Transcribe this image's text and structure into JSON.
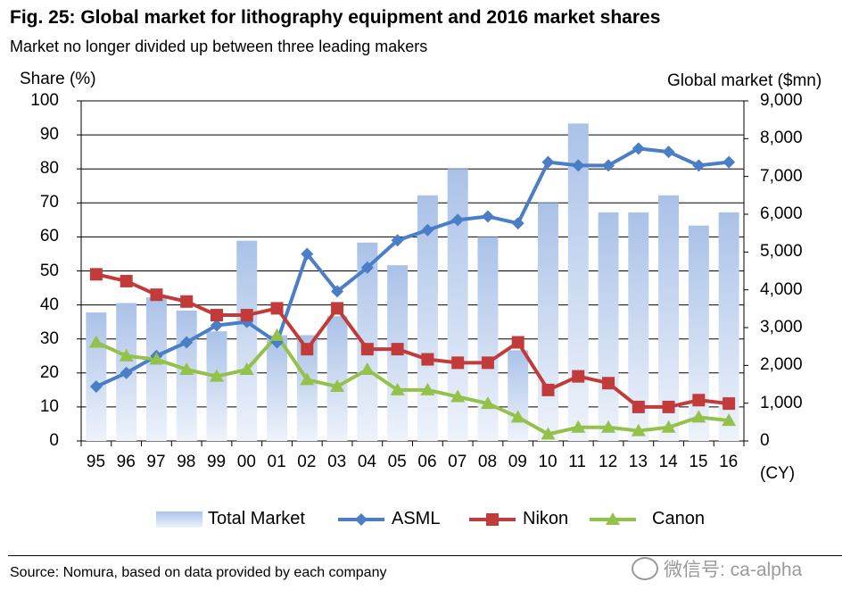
{
  "header": {
    "title": "Fig. 25: Global market for lithography equipment and 2016 market shares",
    "subtitle": "Market no longer divided up between three leading makers"
  },
  "footer": {
    "source": "Source: Nomura, based on data provided by each company",
    "watermark": "微信号: ca-alpha"
  },
  "colors": {
    "bar": "#b7cbea",
    "asml": "#4a7ec6",
    "nikon": "#c23b3b",
    "canon": "#93c14a",
    "grid": "#000000"
  },
  "chart_data": {
    "type": "bar",
    "title": "Fig. 25: Global market for lithography equipment and 2016 market shares",
    "ylabel_left": "Share (%)",
    "ylabel_right": "Global market ($mn)",
    "xlabel": "(CY)",
    "categories": [
      "95",
      "96",
      "97",
      "98",
      "99",
      "00",
      "01",
      "02",
      "03",
      "04",
      "05",
      "06",
      "07",
      "08",
      "09",
      "10",
      "11",
      "12",
      "13",
      "14",
      "15",
      "16"
    ],
    "ylim_left": [
      0,
      100
    ],
    "ylim_right": [
      0,
      9000
    ],
    "yticks_left": [
      "0",
      "10",
      "20",
      "30",
      "40",
      "50",
      "60",
      "70",
      "80",
      "90",
      "100"
    ],
    "yticks_right": [
      "0",
      "1,000",
      "2,000",
      "3,000",
      "4,000",
      "5,000",
      "6,000",
      "7,000",
      "8,000",
      "9,000"
    ],
    "grid": "horizontal",
    "legend_position": "bottom",
    "series": [
      {
        "name": "Total Market",
        "type": "bar",
        "axis": "right",
        "values": [
          3400,
          3650,
          3800,
          3450,
          2900,
          5300,
          2800,
          2800,
          3300,
          5250,
          4650,
          6500,
          7200,
          5400,
          2400,
          6300,
          8400,
          6050,
          6050,
          6500,
          5700,
          6050
        ]
      },
      {
        "name": "ASML",
        "type": "line",
        "marker": "diamond",
        "axis": "left",
        "values": [
          16,
          20,
          25,
          29,
          34,
          35,
          29,
          55,
          44,
          51,
          59,
          62,
          65,
          66,
          64,
          82,
          81,
          81,
          86,
          85,
          81,
          82
        ]
      },
      {
        "name": "Nikon",
        "type": "line",
        "marker": "square",
        "axis": "left",
        "values": [
          49,
          47,
          43,
          41,
          37,
          37,
          39,
          27,
          39,
          27,
          27,
          24,
          23,
          23,
          29,
          15,
          19,
          17,
          10,
          10,
          12,
          11
        ]
      },
      {
        "name": "Canon",
        "type": "line",
        "marker": "triangle",
        "axis": "left",
        "values": [
          29,
          25,
          24,
          21,
          19,
          21,
          31,
          18,
          16,
          21,
          15,
          15,
          13,
          11,
          7,
          2,
          4,
          4,
          3,
          4,
          7,
          6
        ]
      }
    ]
  }
}
